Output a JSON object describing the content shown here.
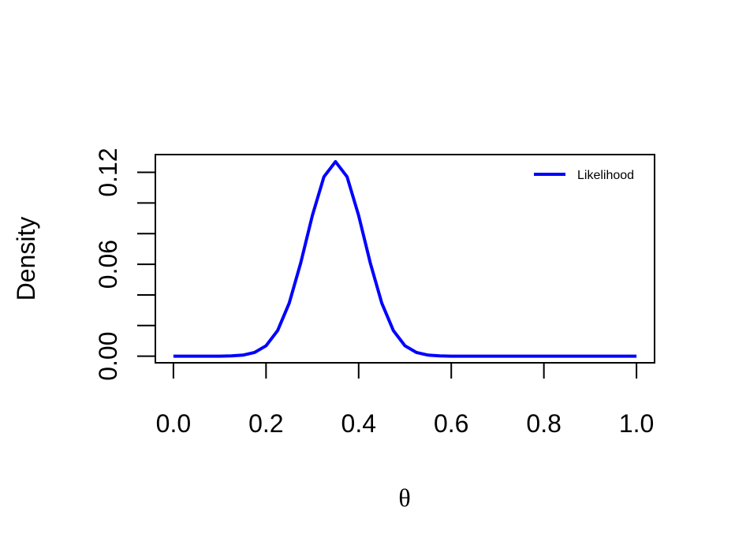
{
  "chart_data": {
    "type": "line",
    "x": [
      0,
      0.025,
      0.05,
      0.075,
      0.1,
      0.125,
      0.15,
      0.175,
      0.2,
      0.225,
      0.25,
      0.275,
      0.3,
      0.325,
      0.35,
      0.375,
      0.4,
      0.425,
      0.45,
      0.475,
      0.5,
      0.525,
      0.55,
      0.575,
      0.6,
      0.625,
      0.65,
      0.675,
      0.7,
      0.725,
      0.75,
      0.775,
      0.8,
      0.825,
      0.85,
      0.875,
      0.9,
      0.925,
      0.95,
      0.975,
      1
    ],
    "series": [
      {
        "name": "Likelihood",
        "color": "#0000ff",
        "values": [
          0,
          0,
          0,
          0,
          0,
          0.0002,
          0.0007,
          0.0024,
          0.0068,
          0.0167,
          0.0346,
          0.061,
          0.0918,
          0.1171,
          0.127,
          0.1171,
          0.0918,
          0.061,
          0.0346,
          0.0167,
          0.0068,
          0.0024,
          0.0007,
          0.0002,
          0,
          0,
          0,
          0,
          0,
          0,
          0,
          0,
          0,
          0,
          0,
          0,
          0,
          0,
          0,
          0,
          0
        ]
      }
    ],
    "xlabel": "θ",
    "ylabel": "Density",
    "xlim": [
      -0.039,
      1.039
    ],
    "ylim": [
      -0.0043,
      0.1316
    ],
    "xticks": [
      {
        "value": 0,
        "label": "0.0"
      },
      {
        "value": 0.2,
        "label": "0.2"
      },
      {
        "value": 0.4,
        "label": "0.4"
      },
      {
        "value": 0.6,
        "label": "0.6"
      },
      {
        "value": 0.8,
        "label": "0.8"
      },
      {
        "value": 1,
        "label": "1.0"
      }
    ],
    "yticks": [
      {
        "value": 0,
        "label": "0.00"
      },
      {
        "value": 0.06,
        "label": "0.06"
      },
      {
        "value": 0.12,
        "label": "0.12"
      }
    ],
    "yminorticks": [
      0.02,
      0.04,
      0.08,
      0.1
    ],
    "legend": "topright",
    "grid": false
  }
}
